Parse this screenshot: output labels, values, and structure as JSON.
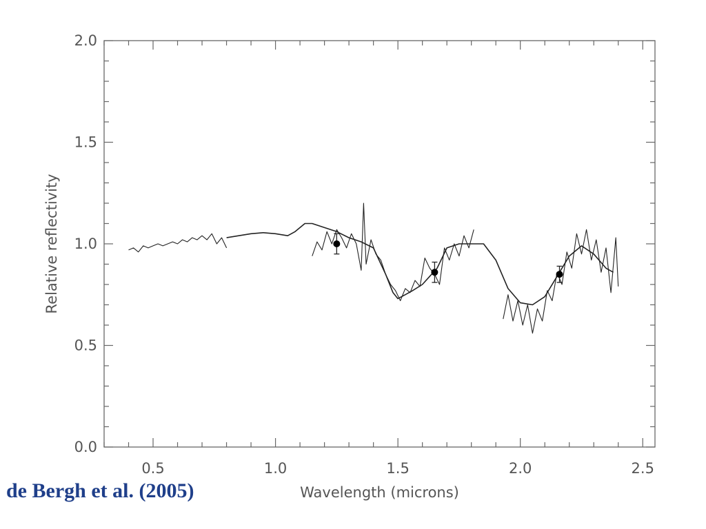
{
  "citation": "de Bergh et al. (2005)",
  "chart_data": {
    "type": "line",
    "title": "",
    "xlabel": "Wavelength (microns)",
    "ylabel": "Relative reflectivity",
    "xlim": [
      0.3,
      2.55
    ],
    "ylim": [
      0.0,
      2.0
    ],
    "xticks": [
      0.5,
      1.0,
      1.5,
      2.0,
      2.5
    ],
    "xtick_labels": [
      "0.5",
      "1.0",
      "1.5",
      "2.0",
      "2.5"
    ],
    "yticks": [
      0.0,
      0.5,
      1.0,
      1.5,
      2.0
    ],
    "ytick_labels": [
      "0.0",
      "0.5",
      "1.0",
      "1.5",
      "2.0"
    ],
    "grid": false,
    "colors": {
      "data": "#222222",
      "frame": "#666666",
      "citation": "#1f3f8a"
    },
    "series": [
      {
        "kind": "visible-spectrum",
        "x": [
          0.4,
          0.42,
          0.44,
          0.46,
          0.48,
          0.5,
          0.52,
          0.54,
          0.56,
          0.58,
          0.6,
          0.62,
          0.64,
          0.66,
          0.68,
          0.7,
          0.72,
          0.74,
          0.76,
          0.78,
          0.8
        ],
        "y": [
          0.97,
          0.98,
          0.96,
          0.99,
          0.98,
          0.99,
          1.0,
          0.99,
          1.0,
          1.01,
          1.0,
          1.02,
          1.01,
          1.03,
          1.02,
          1.04,
          1.02,
          1.05,
          1.0,
          1.03,
          0.98
        ]
      },
      {
        "kind": "near-ir-spectrum",
        "x": [
          1.15,
          1.17,
          1.19,
          1.21,
          1.23,
          1.25,
          1.27,
          1.29,
          1.31,
          1.33,
          1.35,
          1.36,
          1.37,
          1.39,
          1.41,
          1.43,
          1.45,
          1.47,
          1.49,
          1.51,
          1.53,
          1.55,
          1.57,
          1.59,
          1.61,
          1.63,
          1.65,
          1.67,
          1.69,
          1.71,
          1.73,
          1.75,
          1.77,
          1.79,
          1.81
        ],
        "y": [
          0.94,
          1.01,
          0.97,
          1.06,
          1.0,
          1.07,
          1.03,
          0.98,
          1.05,
          1.0,
          0.87,
          1.2,
          0.9,
          1.02,
          0.95,
          0.92,
          0.85,
          0.8,
          0.77,
          0.72,
          0.78,
          0.76,
          0.82,
          0.79,
          0.93,
          0.88,
          0.85,
          0.8,
          0.98,
          0.92,
          1.0,
          0.94,
          1.04,
          0.98,
          1.07
        ]
      },
      {
        "kind": "k-band-spectrum",
        "x": [
          1.93,
          1.95,
          1.97,
          1.99,
          2.01,
          2.03,
          2.05,
          2.07,
          2.09,
          2.11,
          2.13,
          2.15,
          2.17,
          2.19,
          2.21,
          2.23,
          2.25,
          2.27,
          2.29,
          2.31,
          2.33,
          2.35,
          2.37,
          2.39,
          2.4
        ],
        "y": [
          0.63,
          0.75,
          0.62,
          0.72,
          0.6,
          0.7,
          0.56,
          0.68,
          0.62,
          0.77,
          0.72,
          0.86,
          0.8,
          0.96,
          0.88,
          1.05,
          0.95,
          1.07,
          0.92,
          1.02,
          0.86,
          0.98,
          0.76,
          1.03,
          0.79
        ]
      },
      {
        "kind": "model",
        "x": [
          0.8,
          0.85,
          0.9,
          0.95,
          1.0,
          1.05,
          1.08,
          1.12,
          1.15,
          1.2,
          1.25,
          1.3,
          1.35,
          1.4,
          1.45,
          1.48,
          1.5,
          1.53,
          1.56,
          1.6,
          1.63,
          1.66,
          1.7,
          1.75,
          1.8,
          1.85,
          1.9,
          1.95,
          2.0,
          2.05,
          2.1,
          2.15,
          2.2,
          2.25,
          2.3,
          2.35,
          2.38
        ],
        "y": [
          1.03,
          1.04,
          1.05,
          1.055,
          1.05,
          1.04,
          1.06,
          1.1,
          1.1,
          1.08,
          1.06,
          1.03,
          1.01,
          0.98,
          0.85,
          0.76,
          0.73,
          0.75,
          0.77,
          0.8,
          0.84,
          0.88,
          0.98,
          1.0,
          1.0,
          1.0,
          0.92,
          0.78,
          0.71,
          0.7,
          0.74,
          0.84,
          0.94,
          0.99,
          0.95,
          0.88,
          0.86
        ]
      }
    ],
    "points": [
      {
        "x": 1.25,
        "y": 1.0,
        "yerr": 0.05
      },
      {
        "x": 1.65,
        "y": 0.86,
        "yerr": 0.05
      },
      {
        "x": 2.16,
        "y": 0.85,
        "yerr": 0.04
      }
    ]
  }
}
